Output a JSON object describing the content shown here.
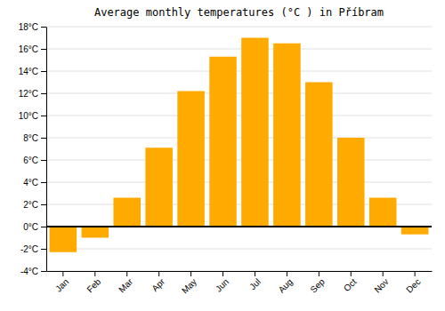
{
  "chart_data": {
    "type": "bar",
    "title": "Average monthly temperatures (°C ) in Příbram",
    "categories": [
      "Jan",
      "Feb",
      "Mar",
      "Apr",
      "May",
      "Jun",
      "Jul",
      "Aug",
      "Sep",
      "Oct",
      "Nov",
      "Dec"
    ],
    "values": [
      -2.3,
      -1.0,
      2.6,
      7.1,
      12.2,
      15.3,
      17.0,
      16.5,
      13.0,
      8.0,
      2.6,
      -0.7
    ],
    "color": "#FFAA00",
    "ylim": [
      -4,
      18
    ],
    "yticks": [
      {
        "value": -4,
        "label": "-4°C"
      },
      {
        "value": -2,
        "label": "-2°C"
      },
      {
        "value": 0,
        "label": "0°C"
      },
      {
        "value": 2,
        "label": "2°C"
      },
      {
        "value": 4,
        "label": "4°C"
      },
      {
        "value": 6,
        "label": "6°C"
      },
      {
        "value": 8,
        "label": "8°C"
      },
      {
        "value": 10,
        "label": "10°C"
      },
      {
        "value": 12,
        "label": "12°C"
      },
      {
        "value": 14,
        "label": "14°C"
      },
      {
        "value": 16,
        "label": "16°C"
      },
      {
        "value": 18,
        "label": "18°C"
      }
    ],
    "grid": true
  }
}
